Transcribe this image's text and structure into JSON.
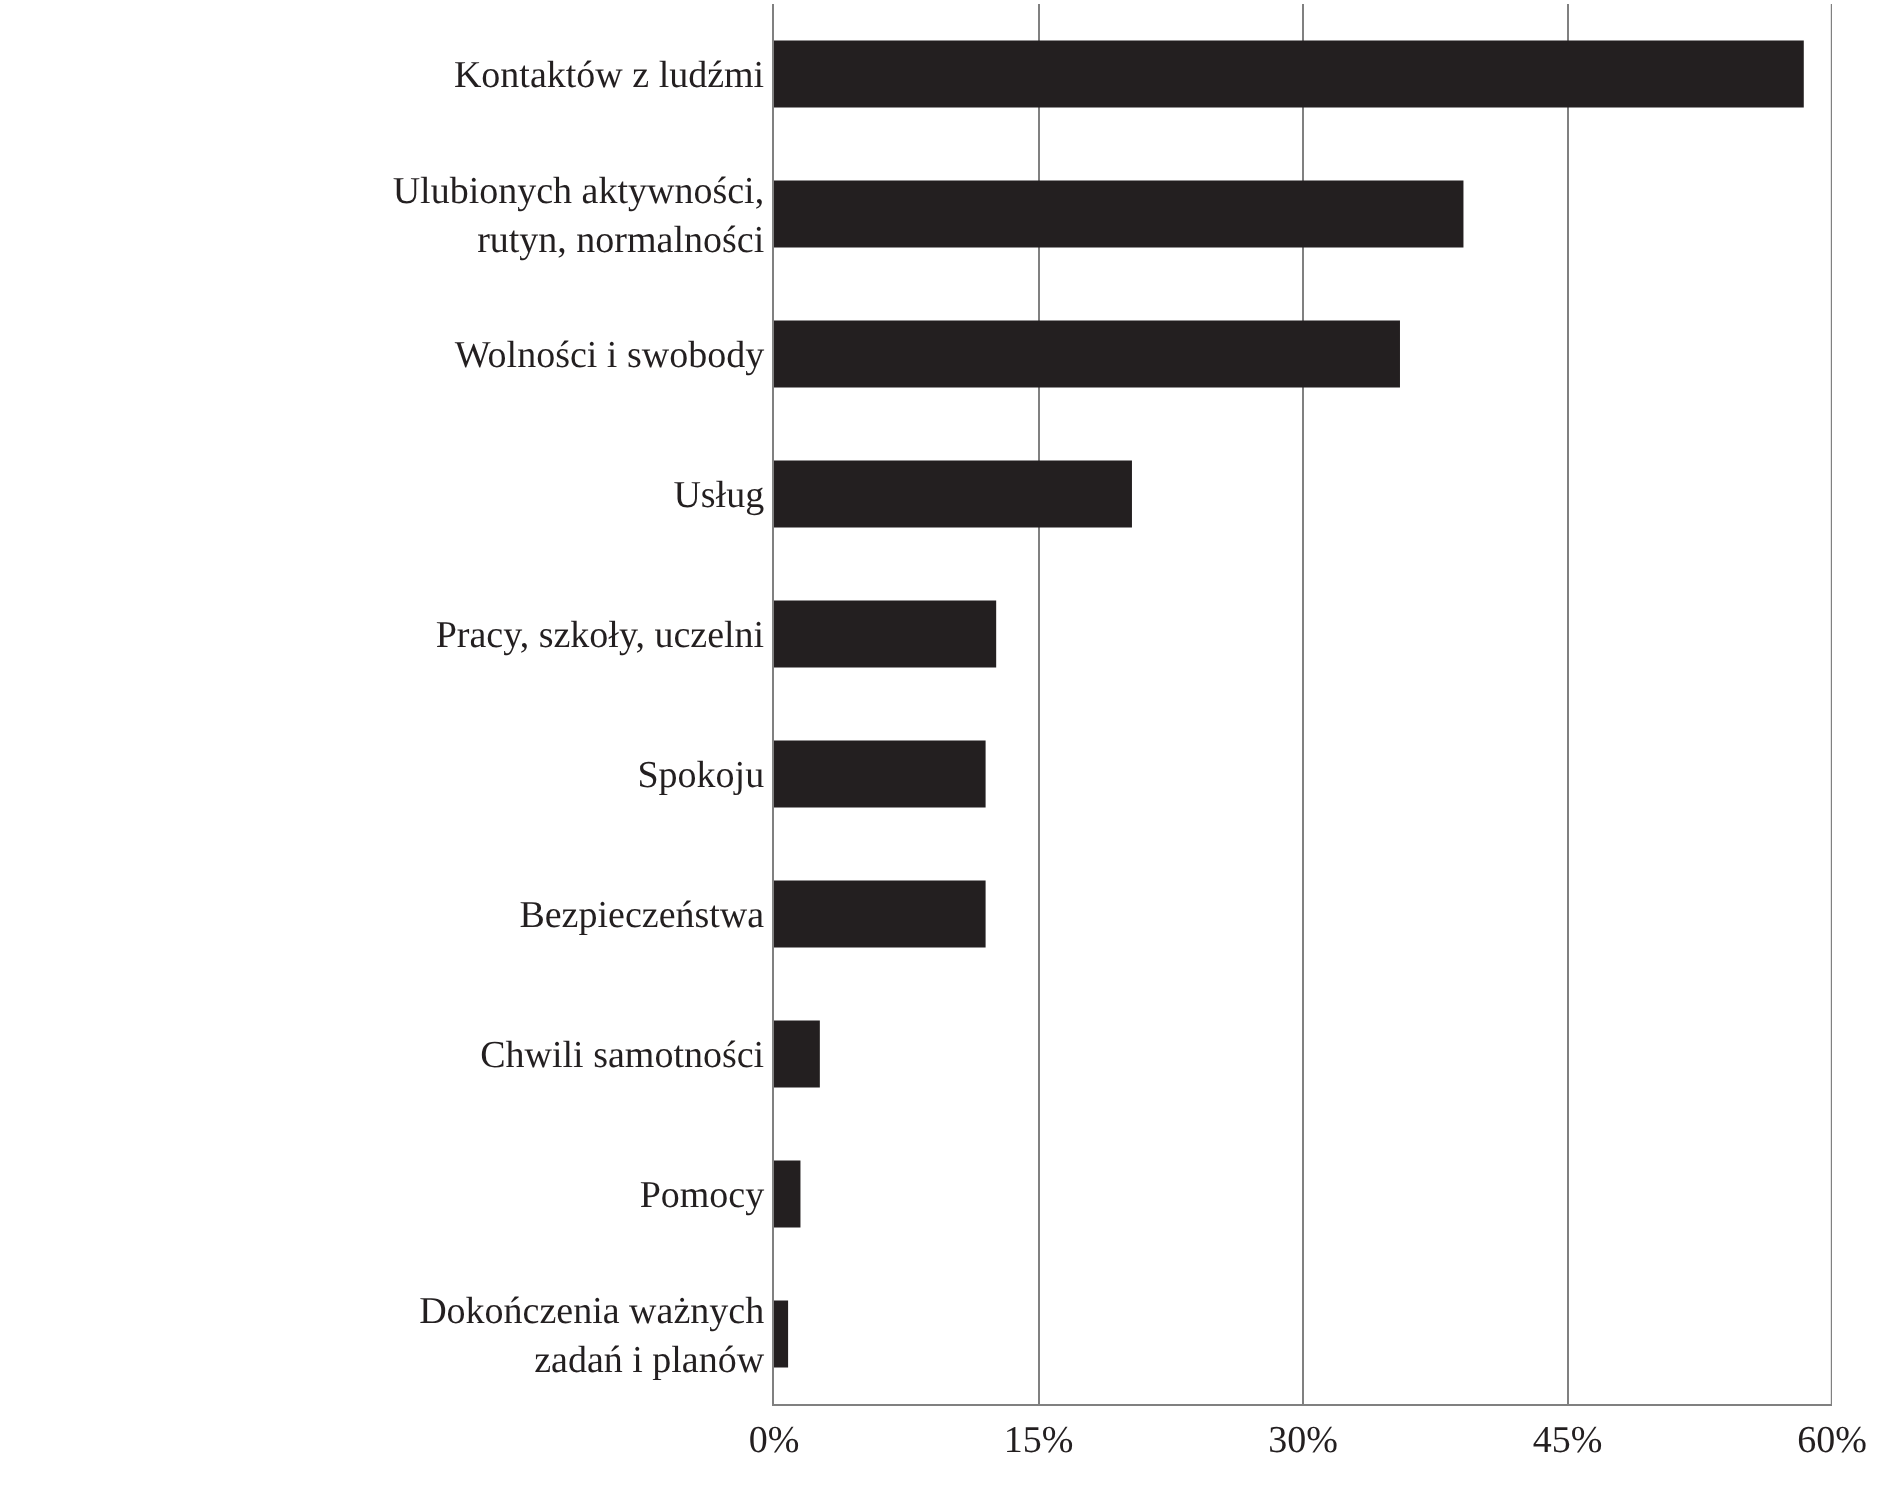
{
  "chart_data": {
    "type": "bar",
    "orientation": "horizontal",
    "categories": [
      "Kontaktów z ludźmi",
      "Ulubionych aktywności, rutyn, normalności",
      "Wolności i swobody",
      "Usług",
      "Pracy, szkoły, uczelni",
      "Spokoju",
      "Bezpieczeństwa",
      "Chwili samotności",
      "Pomocy",
      "Dokończenia ważnych zadań i planów"
    ],
    "values": [
      58.4,
      39.1,
      35.5,
      20.3,
      12.6,
      12.0,
      12.0,
      2.6,
      1.5,
      0.8
    ],
    "color": "#231f20",
    "xlim": [
      0,
      60
    ],
    "xticks": [
      {
        "value": 0,
        "label": "0%"
      },
      {
        "value": 15,
        "label": "15%"
      },
      {
        "value": 30,
        "label": "30%"
      },
      {
        "value": 45,
        "label": "45%"
      },
      {
        "value": 60,
        "label": "60%"
      }
    ],
    "grid": "x"
  }
}
